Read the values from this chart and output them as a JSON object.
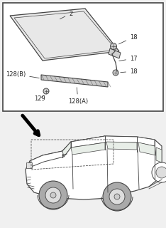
{
  "bg_color": "#f0f0f0",
  "box_color": "#444444",
  "line_color": "#444444",
  "text_color": "#222222",
  "fig_w": 2.34,
  "fig_h": 3.2,
  "dpi": 100
}
